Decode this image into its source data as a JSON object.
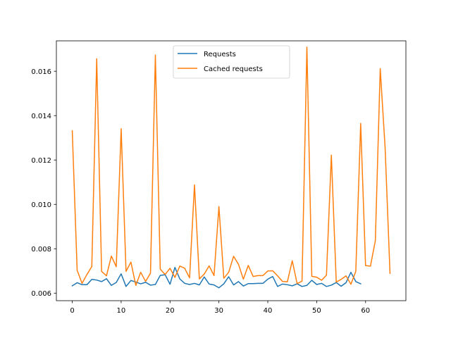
{
  "chart_data": {
    "type": "line",
    "title": "",
    "xlabel": "",
    "ylabel": "",
    "xlim": [
      -3.25,
      68.25
    ],
    "ylim": [
      0.00566,
      0.01737
    ],
    "xticks": [
      0,
      10,
      20,
      30,
      40,
      50,
      60
    ],
    "yticks": [
      0.006,
      0.008,
      0.01,
      0.012,
      0.014,
      0.016
    ],
    "ytick_labels": [
      "0.006",
      "0.008",
      "0.010",
      "0.012",
      "0.014",
      "0.016"
    ],
    "grid": false,
    "legend_position": "top-center",
    "series": [
      {
        "name": "Requests",
        "color": "#1f77b4",
        "x": [
          0,
          1,
          2,
          3,
          4,
          5,
          6,
          7,
          8,
          9,
          10,
          11,
          12,
          13,
          14,
          15,
          16,
          17,
          18,
          19,
          20,
          21,
          22,
          23,
          24,
          25,
          26,
          27,
          28,
          29,
          30,
          31,
          32,
          33,
          34,
          35,
          36,
          37,
          38,
          39,
          40,
          41,
          42,
          43,
          44,
          45,
          46,
          47,
          48,
          49,
          50,
          51,
          52,
          53,
          54,
          55,
          56,
          57,
          58,
          59
        ],
        "y": [
          0.00633,
          0.00647,
          0.00638,
          0.00638,
          0.00662,
          0.00659,
          0.00652,
          0.00665,
          0.00635,
          0.00648,
          0.00687,
          0.0063,
          0.00657,
          0.0065,
          0.00642,
          0.00649,
          0.00636,
          0.00639,
          0.0068,
          0.00683,
          0.0064,
          0.00716,
          0.00664,
          0.00644,
          0.00639,
          0.00644,
          0.00637,
          0.00673,
          0.00641,
          0.00637,
          0.00624,
          0.00642,
          0.00674,
          0.00637,
          0.00652,
          0.00632,
          0.00643,
          0.00643,
          0.00644,
          0.00644,
          0.00663,
          0.00675,
          0.0063,
          0.00641,
          0.00638,
          0.00633,
          0.00642,
          0.0063,
          0.00635,
          0.00658,
          0.00639,
          0.00644,
          0.0063,
          0.00636,
          0.00648,
          0.00631,
          0.00647,
          0.00694,
          0.00652,
          0.00642
        ]
      },
      {
        "name": "Cached requests",
        "color": "#ff7f0e",
        "x": [
          0,
          1,
          2,
          3,
          4,
          5,
          6,
          7,
          8,
          9,
          10,
          11,
          12,
          13,
          14,
          15,
          16,
          17,
          18,
          19,
          20,
          21,
          22,
          23,
          24,
          25,
          26,
          27,
          28,
          29,
          30,
          31,
          32,
          33,
          34,
          35,
          36,
          37,
          38,
          39,
          40,
          41,
          42,
          43,
          44,
          45,
          46,
          47,
          48,
          49,
          50,
          51,
          52,
          53,
          54,
          55,
          56,
          57,
          58,
          59,
          60,
          61,
          62,
          63,
          64,
          65
        ],
        "y": [
          0.01332,
          0.00703,
          0.00644,
          0.00684,
          0.0072,
          0.01656,
          0.00698,
          0.00678,
          0.00767,
          0.00719,
          0.01341,
          0.00698,
          0.0074,
          0.00635,
          0.00694,
          0.00653,
          0.0069,
          0.01673,
          0.00708,
          0.00684,
          0.00712,
          0.00671,
          0.00722,
          0.00712,
          0.00669,
          0.01088,
          0.00664,
          0.00686,
          0.00723,
          0.00679,
          0.0099,
          0.00667,
          0.00694,
          0.00766,
          0.0073,
          0.00663,
          0.00725,
          0.00675,
          0.00679,
          0.00679,
          0.007,
          0.00701,
          0.00678,
          0.00653,
          0.00651,
          0.00746,
          0.00643,
          0.00654,
          0.01709,
          0.00676,
          0.00672,
          0.00658,
          0.00681,
          0.01222,
          0.0065,
          0.00662,
          0.00678,
          0.0064,
          0.00698,
          0.01365,
          0.00724,
          0.00722,
          0.00837,
          0.01612,
          0.01254,
          0.00689
        ]
      }
    ]
  }
}
